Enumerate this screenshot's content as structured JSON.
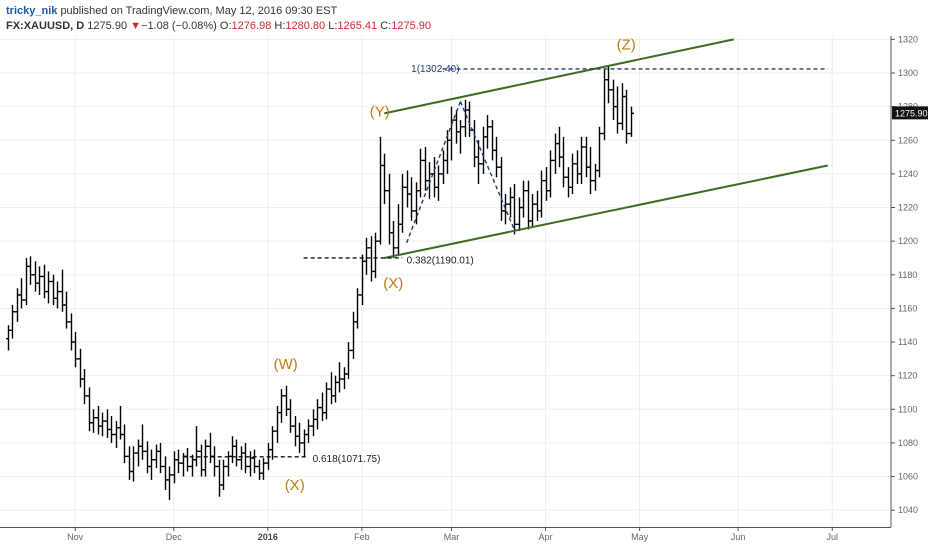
{
  "header": {
    "user": "tricky_nik",
    "published": "published on TradingView.com, May 12, 2016 09:30 EST",
    "symbol": "FX:XAUUSD, D",
    "last": "1275.90",
    "change_arrow": "▼",
    "change": "−1.08 (−0.08%)",
    "o_label": "O:",
    "o": "1276.98",
    "h_label": "H:",
    "h": "1280.80",
    "l_label": "L:",
    "l": "1265.41",
    "c_label": "C:",
    "c": "1275.90"
  },
  "chart_data": {
    "type": "ohlc",
    "instrument": "FX:XAUUSD",
    "timeframe": "D",
    "ylim": [
      1030,
      1322
    ],
    "y_ticks": [
      1040,
      1060,
      1080,
      1100,
      1120,
      1140,
      1160,
      1180,
      1200,
      1220,
      1240,
      1260,
      1280,
      1300,
      1320
    ],
    "x_ticks": [
      {
        "label": "Nov",
        "bar": 15,
        "bold": false
      },
      {
        "label": "Dec",
        "bar": 37,
        "bold": false
      },
      {
        "label": "2016",
        "bar": 58,
        "bold": true
      },
      {
        "label": "Feb",
        "bar": 79,
        "bold": false
      },
      {
        "label": "Mar",
        "bar": 99,
        "bold": false
      },
      {
        "label": "Apr",
        "bar": 120,
        "bold": false
      },
      {
        "label": "May",
        "bar": 141,
        "bold": false
      },
      {
        "label": "Jun",
        "bar": 163,
        "bold": false
      },
      {
        "label": "Jul",
        "bar": 184,
        "bold": false
      }
    ],
    "total_bars": 196,
    "last_price_tag": "1275.90",
    "bars": [
      {
        "o": 1142,
        "h": 1150,
        "l": 1135,
        "c": 1147
      },
      {
        "o": 1147,
        "h": 1162,
        "l": 1142,
        "c": 1158
      },
      {
        "o": 1158,
        "h": 1172,
        "l": 1152,
        "c": 1168
      },
      {
        "o": 1168,
        "h": 1178,
        "l": 1160,
        "c": 1165
      },
      {
        "o": 1165,
        "h": 1190,
        "l": 1162,
        "c": 1185
      },
      {
        "o": 1185,
        "h": 1191,
        "l": 1174,
        "c": 1180
      },
      {
        "o": 1180,
        "h": 1188,
        "l": 1170,
        "c": 1175
      },
      {
        "o": 1175,
        "h": 1185,
        "l": 1168,
        "c": 1179
      },
      {
        "o": 1179,
        "h": 1186,
        "l": 1166,
        "c": 1170
      },
      {
        "o": 1170,
        "h": 1182,
        "l": 1163,
        "c": 1176
      },
      {
        "o": 1176,
        "h": 1180,
        "l": 1162,
        "c": 1166
      },
      {
        "o": 1166,
        "h": 1176,
        "l": 1160,
        "c": 1170
      },
      {
        "o": 1170,
        "h": 1183,
        "l": 1158,
        "c": 1162
      },
      {
        "o": 1162,
        "h": 1170,
        "l": 1148,
        "c": 1152
      },
      {
        "o": 1152,
        "h": 1157,
        "l": 1135,
        "c": 1140
      },
      {
        "o": 1140,
        "h": 1146,
        "l": 1125,
        "c": 1130
      },
      {
        "o": 1130,
        "h": 1136,
        "l": 1113,
        "c": 1118
      },
      {
        "o": 1118,
        "h": 1124,
        "l": 1103,
        "c": 1108
      },
      {
        "o": 1108,
        "h": 1113,
        "l": 1087,
        "c": 1092
      },
      {
        "o": 1092,
        "h": 1100,
        "l": 1086,
        "c": 1095
      },
      {
        "o": 1095,
        "h": 1102,
        "l": 1085,
        "c": 1090
      },
      {
        "o": 1090,
        "h": 1098,
        "l": 1084,
        "c": 1093
      },
      {
        "o": 1093,
        "h": 1100,
        "l": 1083,
        "c": 1088
      },
      {
        "o": 1088,
        "h": 1096,
        "l": 1080,
        "c": 1085
      },
      {
        "o": 1085,
        "h": 1093,
        "l": 1077,
        "c": 1089
      },
      {
        "o": 1089,
        "h": 1102,
        "l": 1082,
        "c": 1085
      },
      {
        "o": 1085,
        "h": 1091,
        "l": 1068,
        "c": 1072
      },
      {
        "o": 1072,
        "h": 1078,
        "l": 1058,
        "c": 1063
      },
      {
        "o": 1063,
        "h": 1078,
        "l": 1057,
        "c": 1074
      },
      {
        "o": 1074,
        "h": 1082,
        "l": 1066,
        "c": 1078
      },
      {
        "o": 1078,
        "h": 1091,
        "l": 1070,
        "c": 1075
      },
      {
        "o": 1075,
        "h": 1081,
        "l": 1062,
        "c": 1066
      },
      {
        "o": 1066,
        "h": 1076,
        "l": 1058,
        "c": 1070
      },
      {
        "o": 1070,
        "h": 1079,
        "l": 1065,
        "c": 1075
      },
      {
        "o": 1075,
        "h": 1080,
        "l": 1062,
        "c": 1066
      },
      {
        "o": 1066,
        "h": 1072,
        "l": 1052,
        "c": 1058
      },
      {
        "o": 1058,
        "h": 1066,
        "l": 1046,
        "c": 1061
      },
      {
        "o": 1061,
        "h": 1075,
        "l": 1056,
        "c": 1070
      },
      {
        "o": 1070,
        "h": 1076,
        "l": 1062,
        "c": 1068
      },
      {
        "o": 1068,
        "h": 1074,
        "l": 1060,
        "c": 1072
      },
      {
        "o": 1072,
        "h": 1077,
        "l": 1063,
        "c": 1066
      },
      {
        "o": 1066,
        "h": 1073,
        "l": 1060,
        "c": 1070
      },
      {
        "o": 1070,
        "h": 1090,
        "l": 1066,
        "c": 1075
      },
      {
        "o": 1075,
        "h": 1079,
        "l": 1060,
        "c": 1064
      },
      {
        "o": 1064,
        "h": 1082,
        "l": 1060,
        "c": 1078
      },
      {
        "o": 1078,
        "h": 1086,
        "l": 1068,
        "c": 1072
      },
      {
        "o": 1072,
        "h": 1078,
        "l": 1060,
        "c": 1066
      },
      {
        "o": 1066,
        "h": 1070,
        "l": 1048,
        "c": 1055
      },
      {
        "o": 1055,
        "h": 1070,
        "l": 1052,
        "c": 1066
      },
      {
        "o": 1066,
        "h": 1075,
        "l": 1060,
        "c": 1072
      },
      {
        "o": 1072,
        "h": 1084,
        "l": 1068,
        "c": 1078
      },
      {
        "o": 1078,
        "h": 1082,
        "l": 1066,
        "c": 1070
      },
      {
        "o": 1070,
        "h": 1078,
        "l": 1064,
        "c": 1074
      },
      {
        "o": 1074,
        "h": 1080,
        "l": 1062,
        "c": 1066
      },
      {
        "o": 1066,
        "h": 1075,
        "l": 1060,
        "c": 1071
      },
      {
        "o": 1071,
        "h": 1076,
        "l": 1062,
        "c": 1066
      },
      {
        "o": 1066,
        "h": 1070,
        "l": 1058,
        "c": 1062
      },
      {
        "o": 1062,
        "h": 1071,
        "l": 1058,
        "c": 1068
      },
      {
        "o": 1068,
        "h": 1080,
        "l": 1064,
        "c": 1076
      },
      {
        "o": 1076,
        "h": 1090,
        "l": 1070,
        "c": 1087
      },
      {
        "o": 1087,
        "h": 1102,
        "l": 1080,
        "c": 1098
      },
      {
        "o": 1098,
        "h": 1112,
        "l": 1092,
        "c": 1108
      },
      {
        "o": 1108,
        "h": 1114,
        "l": 1096,
        "c": 1100
      },
      {
        "o": 1100,
        "h": 1106,
        "l": 1086,
        "c": 1090
      },
      {
        "o": 1090,
        "h": 1096,
        "l": 1078,
        "c": 1084
      },
      {
        "o": 1084,
        "h": 1092,
        "l": 1074,
        "c": 1080
      },
      {
        "o": 1080,
        "h": 1088,
        "l": 1072,
        "c": 1085
      },
      {
        "o": 1085,
        "h": 1094,
        "l": 1080,
        "c": 1090
      },
      {
        "o": 1090,
        "h": 1100,
        "l": 1084,
        "c": 1094
      },
      {
        "o": 1094,
        "h": 1106,
        "l": 1088,
        "c": 1101
      },
      {
        "o": 1101,
        "h": 1110,
        "l": 1093,
        "c": 1098
      },
      {
        "o": 1098,
        "h": 1116,
        "l": 1094,
        "c": 1112
      },
      {
        "o": 1112,
        "h": 1122,
        "l": 1103,
        "c": 1108
      },
      {
        "o": 1108,
        "h": 1120,
        "l": 1104,
        "c": 1116
      },
      {
        "o": 1116,
        "h": 1128,
        "l": 1110,
        "c": 1118
      },
      {
        "o": 1118,
        "h": 1125,
        "l": 1112,
        "c": 1121
      },
      {
        "o": 1121,
        "h": 1140,
        "l": 1118,
        "c": 1135
      },
      {
        "o": 1135,
        "h": 1158,
        "l": 1130,
        "c": 1152
      },
      {
        "o": 1152,
        "h": 1172,
        "l": 1148,
        "c": 1168
      },
      {
        "o": 1168,
        "h": 1192,
        "l": 1162,
        "c": 1188
      },
      {
        "o": 1188,
        "h": 1202,
        "l": 1180,
        "c": 1196
      },
      {
        "o": 1196,
        "h": 1203,
        "l": 1176,
        "c": 1182
      },
      {
        "o": 1182,
        "h": 1205,
        "l": 1178,
        "c": 1200
      },
      {
        "o": 1200,
        "h": 1262,
        "l": 1198,
        "c": 1245
      },
      {
        "o": 1245,
        "h": 1252,
        "l": 1222,
        "c": 1230
      },
      {
        "o": 1230,
        "h": 1240,
        "l": 1198,
        "c": 1205
      },
      {
        "o": 1205,
        "h": 1212,
        "l": 1190,
        "c": 1196
      },
      {
        "o": 1196,
        "h": 1222,
        "l": 1192,
        "c": 1210
      },
      {
        "o": 1210,
        "h": 1240,
        "l": 1205,
        "c": 1232
      },
      {
        "o": 1232,
        "h": 1242,
        "l": 1220,
        "c": 1228
      },
      {
        "o": 1228,
        "h": 1238,
        "l": 1212,
        "c": 1218
      },
      {
        "o": 1218,
        "h": 1235,
        "l": 1210,
        "c": 1230
      },
      {
        "o": 1230,
        "h": 1255,
        "l": 1226,
        "c": 1248
      },
      {
        "o": 1248,
        "h": 1256,
        "l": 1230,
        "c": 1236
      },
      {
        "o": 1236,
        "h": 1247,
        "l": 1225,
        "c": 1240
      },
      {
        "o": 1240,
        "h": 1250,
        "l": 1226,
        "c": 1232
      },
      {
        "o": 1232,
        "h": 1245,
        "l": 1224,
        "c": 1240
      },
      {
        "o": 1240,
        "h": 1254,
        "l": 1234,
        "c": 1248
      },
      {
        "o": 1248,
        "h": 1266,
        "l": 1240,
        "c": 1260
      },
      {
        "o": 1260,
        "h": 1280,
        "l": 1248,
        "c": 1272
      },
      {
        "o": 1272,
        "h": 1278,
        "l": 1258,
        "c": 1265
      },
      {
        "o": 1265,
        "h": 1272,
        "l": 1252,
        "c": 1268
      },
      {
        "o": 1268,
        "h": 1284,
        "l": 1262,
        "c": 1278
      },
      {
        "o": 1278,
        "h": 1283,
        "l": 1262,
        "c": 1266
      },
      {
        "o": 1266,
        "h": 1272,
        "l": 1244,
        "c": 1250
      },
      {
        "o": 1250,
        "h": 1260,
        "l": 1234,
        "c": 1246
      },
      {
        "o": 1246,
        "h": 1268,
        "l": 1240,
        "c": 1262
      },
      {
        "o": 1262,
        "h": 1275,
        "l": 1255,
        "c": 1268
      },
      {
        "o": 1268,
        "h": 1272,
        "l": 1248,
        "c": 1254
      },
      {
        "o": 1254,
        "h": 1262,
        "l": 1238,
        "c": 1244
      },
      {
        "o": 1244,
        "h": 1250,
        "l": 1212,
        "c": 1218
      },
      {
        "o": 1218,
        "h": 1228,
        "l": 1210,
        "c": 1222
      },
      {
        "o": 1222,
        "h": 1232,
        "l": 1214,
        "c": 1226
      },
      {
        "o": 1226,
        "h": 1234,
        "l": 1204,
        "c": 1210
      },
      {
        "o": 1210,
        "h": 1226,
        "l": 1206,
        "c": 1220
      },
      {
        "o": 1220,
        "h": 1236,
        "l": 1214,
        "c": 1230
      },
      {
        "o": 1230,
        "h": 1236,
        "l": 1207,
        "c": 1212
      },
      {
        "o": 1212,
        "h": 1228,
        "l": 1208,
        "c": 1222
      },
      {
        "o": 1222,
        "h": 1230,
        "l": 1212,
        "c": 1218
      },
      {
        "o": 1218,
        "h": 1242,
        "l": 1214,
        "c": 1236
      },
      {
        "o": 1236,
        "h": 1244,
        "l": 1224,
        "c": 1230
      },
      {
        "o": 1230,
        "h": 1254,
        "l": 1226,
        "c": 1248
      },
      {
        "o": 1248,
        "h": 1264,
        "l": 1240,
        "c": 1258
      },
      {
        "o": 1258,
        "h": 1268,
        "l": 1244,
        "c": 1250
      },
      {
        "o": 1250,
        "h": 1262,
        "l": 1232,
        "c": 1238
      },
      {
        "o": 1238,
        "h": 1244,
        "l": 1226,
        "c": 1232
      },
      {
        "o": 1232,
        "h": 1252,
        "l": 1228,
        "c": 1246
      },
      {
        "o": 1246,
        "h": 1254,
        "l": 1234,
        "c": 1240
      },
      {
        "o": 1240,
        "h": 1262,
        "l": 1234,
        "c": 1256
      },
      {
        "o": 1256,
        "h": 1262,
        "l": 1238,
        "c": 1244
      },
      {
        "o": 1244,
        "h": 1256,
        "l": 1228,
        "c": 1236
      },
      {
        "o": 1236,
        "h": 1246,
        "l": 1230,
        "c": 1242
      },
      {
        "o": 1242,
        "h": 1268,
        "l": 1238,
        "c": 1264
      },
      {
        "o": 1264,
        "h": 1302,
        "l": 1260,
        "c": 1296
      },
      {
        "o": 1296,
        "h": 1304,
        "l": 1282,
        "c": 1290
      },
      {
        "o": 1290,
        "h": 1296,
        "l": 1272,
        "c": 1280
      },
      {
        "o": 1280,
        "h": 1292,
        "l": 1264,
        "c": 1270
      },
      {
        "o": 1270,
        "h": 1294,
        "l": 1266,
        "c": 1286
      },
      {
        "o": 1286,
        "h": 1290,
        "l": 1258,
        "c": 1264
      },
      {
        "o": 1264,
        "h": 1280,
        "l": 1262,
        "c": 1276
      }
    ],
    "lines": [
      {
        "name": "channel-upper",
        "color": "#3d6b1f",
        "from": {
          "bar": 84,
          "price": 1276
        },
        "to": {
          "bar": 162,
          "price": 1320
        }
      },
      {
        "name": "channel-lower",
        "color": "#3d6b1f",
        "from": {
          "bar": 84,
          "price": 1190
        },
        "to": {
          "bar": 183,
          "price": 1245
        }
      },
      {
        "name": "fib-1",
        "style": "dashed",
        "color": "#1e3a6e",
        "from": {
          "bar": 97,
          "price": 1302.4
        },
        "to": {
          "bar": 183,
          "price": 1302.4
        }
      },
      {
        "name": "fib-0382",
        "style": "dashed",
        "color": "#111111",
        "from": {
          "bar": 66,
          "price": 1190.01
        },
        "to": {
          "bar": 88,
          "price": 1190.01
        }
      },
      {
        "name": "fib-0618",
        "style": "dashed",
        "color": "#111111",
        "from": {
          "bar": 39,
          "price": 1071.75
        },
        "to": {
          "bar": 67,
          "price": 1071.75
        }
      },
      {
        "name": "wave-dash-up",
        "style": "dashed",
        "color": "#1e3a6e",
        "from": {
          "bar": 89,
          "price": 1199
        },
        "to": {
          "bar": 101,
          "price": 1283
        }
      },
      {
        "name": "wave-dash-down",
        "style": "dashed",
        "color": "#1e3a6e",
        "from": {
          "bar": 101,
          "price": 1283
        },
        "to": {
          "bar": 113,
          "price": 1207
        }
      }
    ],
    "annotations": [
      {
        "text": "1(1302.40)",
        "bar": 90,
        "price": 1302.4,
        "color": "blue"
      },
      {
        "text": "0.382(1190.01)",
        "bar": 89,
        "price": 1188.5,
        "color": "black"
      },
      {
        "text": "0.618(1071.75)",
        "bar": 68,
        "price": 1070.3,
        "color": "black"
      }
    ],
    "wave_labels": [
      {
        "text": "(W)",
        "bar": 62,
        "price": 1124
      },
      {
        "text": "(X)",
        "bar": 64,
        "price": 1052
      },
      {
        "text": "(Y)",
        "bar": 83,
        "price": 1274
      },
      {
        "text": "(X)",
        "bar": 86,
        "price": 1172
      },
      {
        "text": "(Z)",
        "bar": 138,
        "price": 1314
      }
    ]
  }
}
